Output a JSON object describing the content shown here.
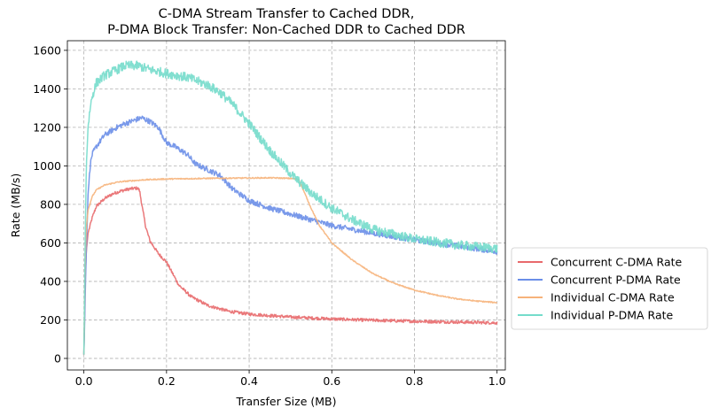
{
  "chart_data": {
    "type": "line",
    "title_line1": "C-DMA Stream Transfer to Cached DDR,",
    "title_line2": "P-DMA Block Transfer: Non-Cached DDR to Cached DDR",
    "xlabel": "Transfer Size (MB)",
    "ylabel": "Rate (MB/s)",
    "xlim": [
      -0.04,
      1.02
    ],
    "ylim": [
      -60,
      1650
    ],
    "xticks": [
      0.0,
      0.2,
      0.4,
      0.6,
      0.8,
      1.0
    ],
    "xtick_labels": [
      "0.0",
      "0.2",
      "0.4",
      "0.6",
      "0.8",
      "1.0"
    ],
    "yticks": [
      0,
      200,
      400,
      600,
      800,
      1000,
      1200,
      1400,
      1600
    ],
    "ytick_labels": [
      "0",
      "200",
      "400",
      "600",
      "800",
      "1000",
      "1200",
      "1400",
      "1600"
    ],
    "grid": true,
    "legend_position": "outside-right",
    "series": [
      {
        "name": "Concurrent C-DMA Rate",
        "color": "#e8696b",
        "noise": 8,
        "points": [
          [
            0.0,
            20
          ],
          [
            0.003,
            400
          ],
          [
            0.006,
            560
          ],
          [
            0.01,
            650
          ],
          [
            0.02,
            730
          ],
          [
            0.03,
            790
          ],
          [
            0.05,
            830
          ],
          [
            0.07,
            855
          ],
          [
            0.09,
            870
          ],
          [
            0.11,
            880
          ],
          [
            0.13,
            885
          ],
          [
            0.135,
            870
          ],
          [
            0.14,
            800
          ],
          [
            0.15,
            680
          ],
          [
            0.16,
            610
          ],
          [
            0.18,
            545
          ],
          [
            0.2,
            500
          ],
          [
            0.23,
            380
          ],
          [
            0.26,
            320
          ],
          [
            0.3,
            275
          ],
          [
            0.35,
            245
          ],
          [
            0.4,
            230
          ],
          [
            0.5,
            215
          ],
          [
            0.6,
            205
          ],
          [
            0.7,
            198
          ],
          [
            0.8,
            193
          ],
          [
            0.9,
            189
          ],
          [
            1.0,
            185
          ]
        ]
      },
      {
        "name": "Concurrent P-DMA Rate",
        "color": "#6a8ee8",
        "noise": 14,
        "points": [
          [
            0.0,
            20
          ],
          [
            0.005,
            500
          ],
          [
            0.01,
            850
          ],
          [
            0.015,
            1000
          ],
          [
            0.02,
            1060
          ],
          [
            0.03,
            1100
          ],
          [
            0.05,
            1160
          ],
          [
            0.08,
            1200
          ],
          [
            0.1,
            1220
          ],
          [
            0.12,
            1235
          ],
          [
            0.14,
            1250
          ],
          [
            0.16,
            1230
          ],
          [
            0.18,
            1200
          ],
          [
            0.19,
            1160
          ],
          [
            0.2,
            1120
          ],
          [
            0.22,
            1100
          ],
          [
            0.25,
            1060
          ],
          [
            0.27,
            1010
          ],
          [
            0.3,
            980
          ],
          [
            0.33,
            950
          ],
          [
            0.36,
            880
          ],
          [
            0.4,
            820
          ],
          [
            0.45,
            780
          ],
          [
            0.5,
            750
          ],
          [
            0.55,
            720
          ],
          [
            0.6,
            690
          ],
          [
            0.7,
            650
          ],
          [
            0.8,
            615
          ],
          [
            0.9,
            585
          ],
          [
            1.0,
            555
          ]
        ]
      },
      {
        "name": "Individual C-DMA Rate",
        "color": "#f6b27a",
        "noise": 3,
        "points": [
          [
            0.0,
            20
          ],
          [
            0.003,
            500
          ],
          [
            0.006,
            680
          ],
          [
            0.01,
            770
          ],
          [
            0.02,
            840
          ],
          [
            0.03,
            875
          ],
          [
            0.05,
            900
          ],
          [
            0.08,
            915
          ],
          [
            0.1,
            920
          ],
          [
            0.15,
            928
          ],
          [
            0.2,
            932
          ],
          [
            0.3,
            935
          ],
          [
            0.4,
            937
          ],
          [
            0.45,
            938
          ],
          [
            0.5,
            935
          ],
          [
            0.52,
            930
          ],
          [
            0.53,
            880
          ],
          [
            0.55,
            780
          ],
          [
            0.57,
            690
          ],
          [
            0.6,
            600
          ],
          [
            0.65,
            510
          ],
          [
            0.7,
            440
          ],
          [
            0.75,
            390
          ],
          [
            0.8,
            355
          ],
          [
            0.85,
            330
          ],
          [
            0.9,
            310
          ],
          [
            0.95,
            298
          ],
          [
            1.0,
            290
          ]
        ]
      },
      {
        "name": "Individual P-DMA Rate",
        "color": "#74dccb",
        "noise": 24,
        "points": [
          [
            0.0,
            20
          ],
          [
            0.003,
            600
          ],
          [
            0.006,
            1000
          ],
          [
            0.01,
            1200
          ],
          [
            0.015,
            1300
          ],
          [
            0.02,
            1360
          ],
          [
            0.03,
            1430
          ],
          [
            0.05,
            1470
          ],
          [
            0.08,
            1500
          ],
          [
            0.1,
            1520
          ],
          [
            0.13,
            1520
          ],
          [
            0.16,
            1500
          ],
          [
            0.2,
            1480
          ],
          [
            0.25,
            1460
          ],
          [
            0.3,
            1420
          ],
          [
            0.33,
            1380
          ],
          [
            0.36,
            1320
          ],
          [
            0.4,
            1220
          ],
          [
            0.45,
            1080
          ],
          [
            0.5,
            960
          ],
          [
            0.55,
            860
          ],
          [
            0.6,
            780
          ],
          [
            0.65,
            720
          ],
          [
            0.7,
            670
          ],
          [
            0.8,
            620
          ],
          [
            0.9,
            590
          ],
          [
            1.0,
            570
          ]
        ]
      }
    ]
  }
}
